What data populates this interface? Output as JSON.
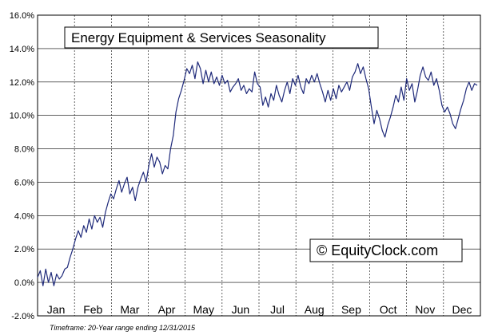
{
  "chart_data": {
    "type": "line",
    "title": "Energy Equipment & Services Seasonality",
    "watermark": "© EquityClock.com",
    "footnote": "Timeframe: 20-Year range ending 12/31/2015",
    "xlabel": "",
    "ylabel": "",
    "ylim": [
      -2,
      16
    ],
    "yticks": [
      "16.0%",
      "14.0%",
      "12.0%",
      "10.0%",
      "8.0%",
      "6.0%",
      "4.0%",
      "2.0%",
      "0.0%",
      "-2.0%"
    ],
    "ytick_values": [
      16,
      14,
      12,
      10,
      8,
      6,
      4,
      2,
      0,
      -2
    ],
    "month_labels": [
      "Jan",
      "Feb",
      "Mar",
      "Apr",
      "May",
      "Jun",
      "Jul",
      "Aug",
      "Sep",
      "Oct",
      "Nov",
      "Dec"
    ],
    "grid": true,
    "line_color": "#1f2a7a",
    "series": [
      {
        "values": [
          0.3,
          0.7,
          -0.2,
          0.8,
          0.0,
          0.6,
          -0.2,
          0.5,
          0.2,
          0.4,
          0.8,
          0.9,
          1.5,
          2.0,
          2.6,
          3.1,
          2.7,
          3.4,
          3.0,
          3.8,
          3.2,
          4.0,
          3.6,
          3.9,
          3.3,
          4.2,
          4.8,
          5.3,
          5.0,
          5.6,
          6.1,
          5.4,
          5.9,
          6.3,
          5.3,
          5.7,
          4.9,
          5.7,
          6.2,
          6.6,
          6.0,
          7.0,
          7.7,
          6.9,
          7.5,
          7.2,
          6.5,
          7.0,
          6.8,
          8.0,
          8.8,
          10.2,
          11.0,
          11.5,
          12.1,
          12.8,
          12.5,
          13.0,
          12.2,
          13.2,
          12.8,
          11.9,
          12.7,
          12.0,
          12.6,
          11.9,
          12.3,
          11.8,
          12.4,
          11.9,
          12.1,
          11.4,
          11.7,
          11.9,
          12.2,
          11.5,
          11.8,
          11.3,
          11.6,
          11.4,
          12.6,
          11.9,
          11.7,
          10.6,
          11.1,
          10.5,
          11.3,
          10.9,
          11.8,
          11.2,
          10.8,
          11.5,
          12.0,
          11.3,
          12.2,
          11.8,
          12.4,
          11.7,
          11.3,
          12.2,
          11.9,
          12.4,
          12.0,
          12.5,
          11.9,
          11.4,
          10.8,
          11.5,
          10.9,
          11.6,
          11.0,
          11.8,
          11.4,
          11.7,
          12.0,
          11.5,
          12.3,
          12.6,
          13.1,
          12.5,
          12.9,
          12.2,
          11.6,
          10.5,
          9.5,
          10.3,
          9.8,
          9.1,
          8.7,
          9.4,
          9.9,
          10.5,
          11.2,
          10.8,
          11.7,
          10.9,
          12.2,
          11.5,
          11.9,
          10.8,
          11.5,
          12.4,
          12.9,
          12.3,
          12.1,
          12.6,
          11.8,
          12.2,
          11.5,
          10.6,
          10.2,
          10.5,
          10.1,
          9.5,
          9.2,
          9.8,
          10.4,
          10.9,
          11.6,
          12.0,
          11.5,
          11.9,
          11.8
        ]
      }
    ]
  }
}
